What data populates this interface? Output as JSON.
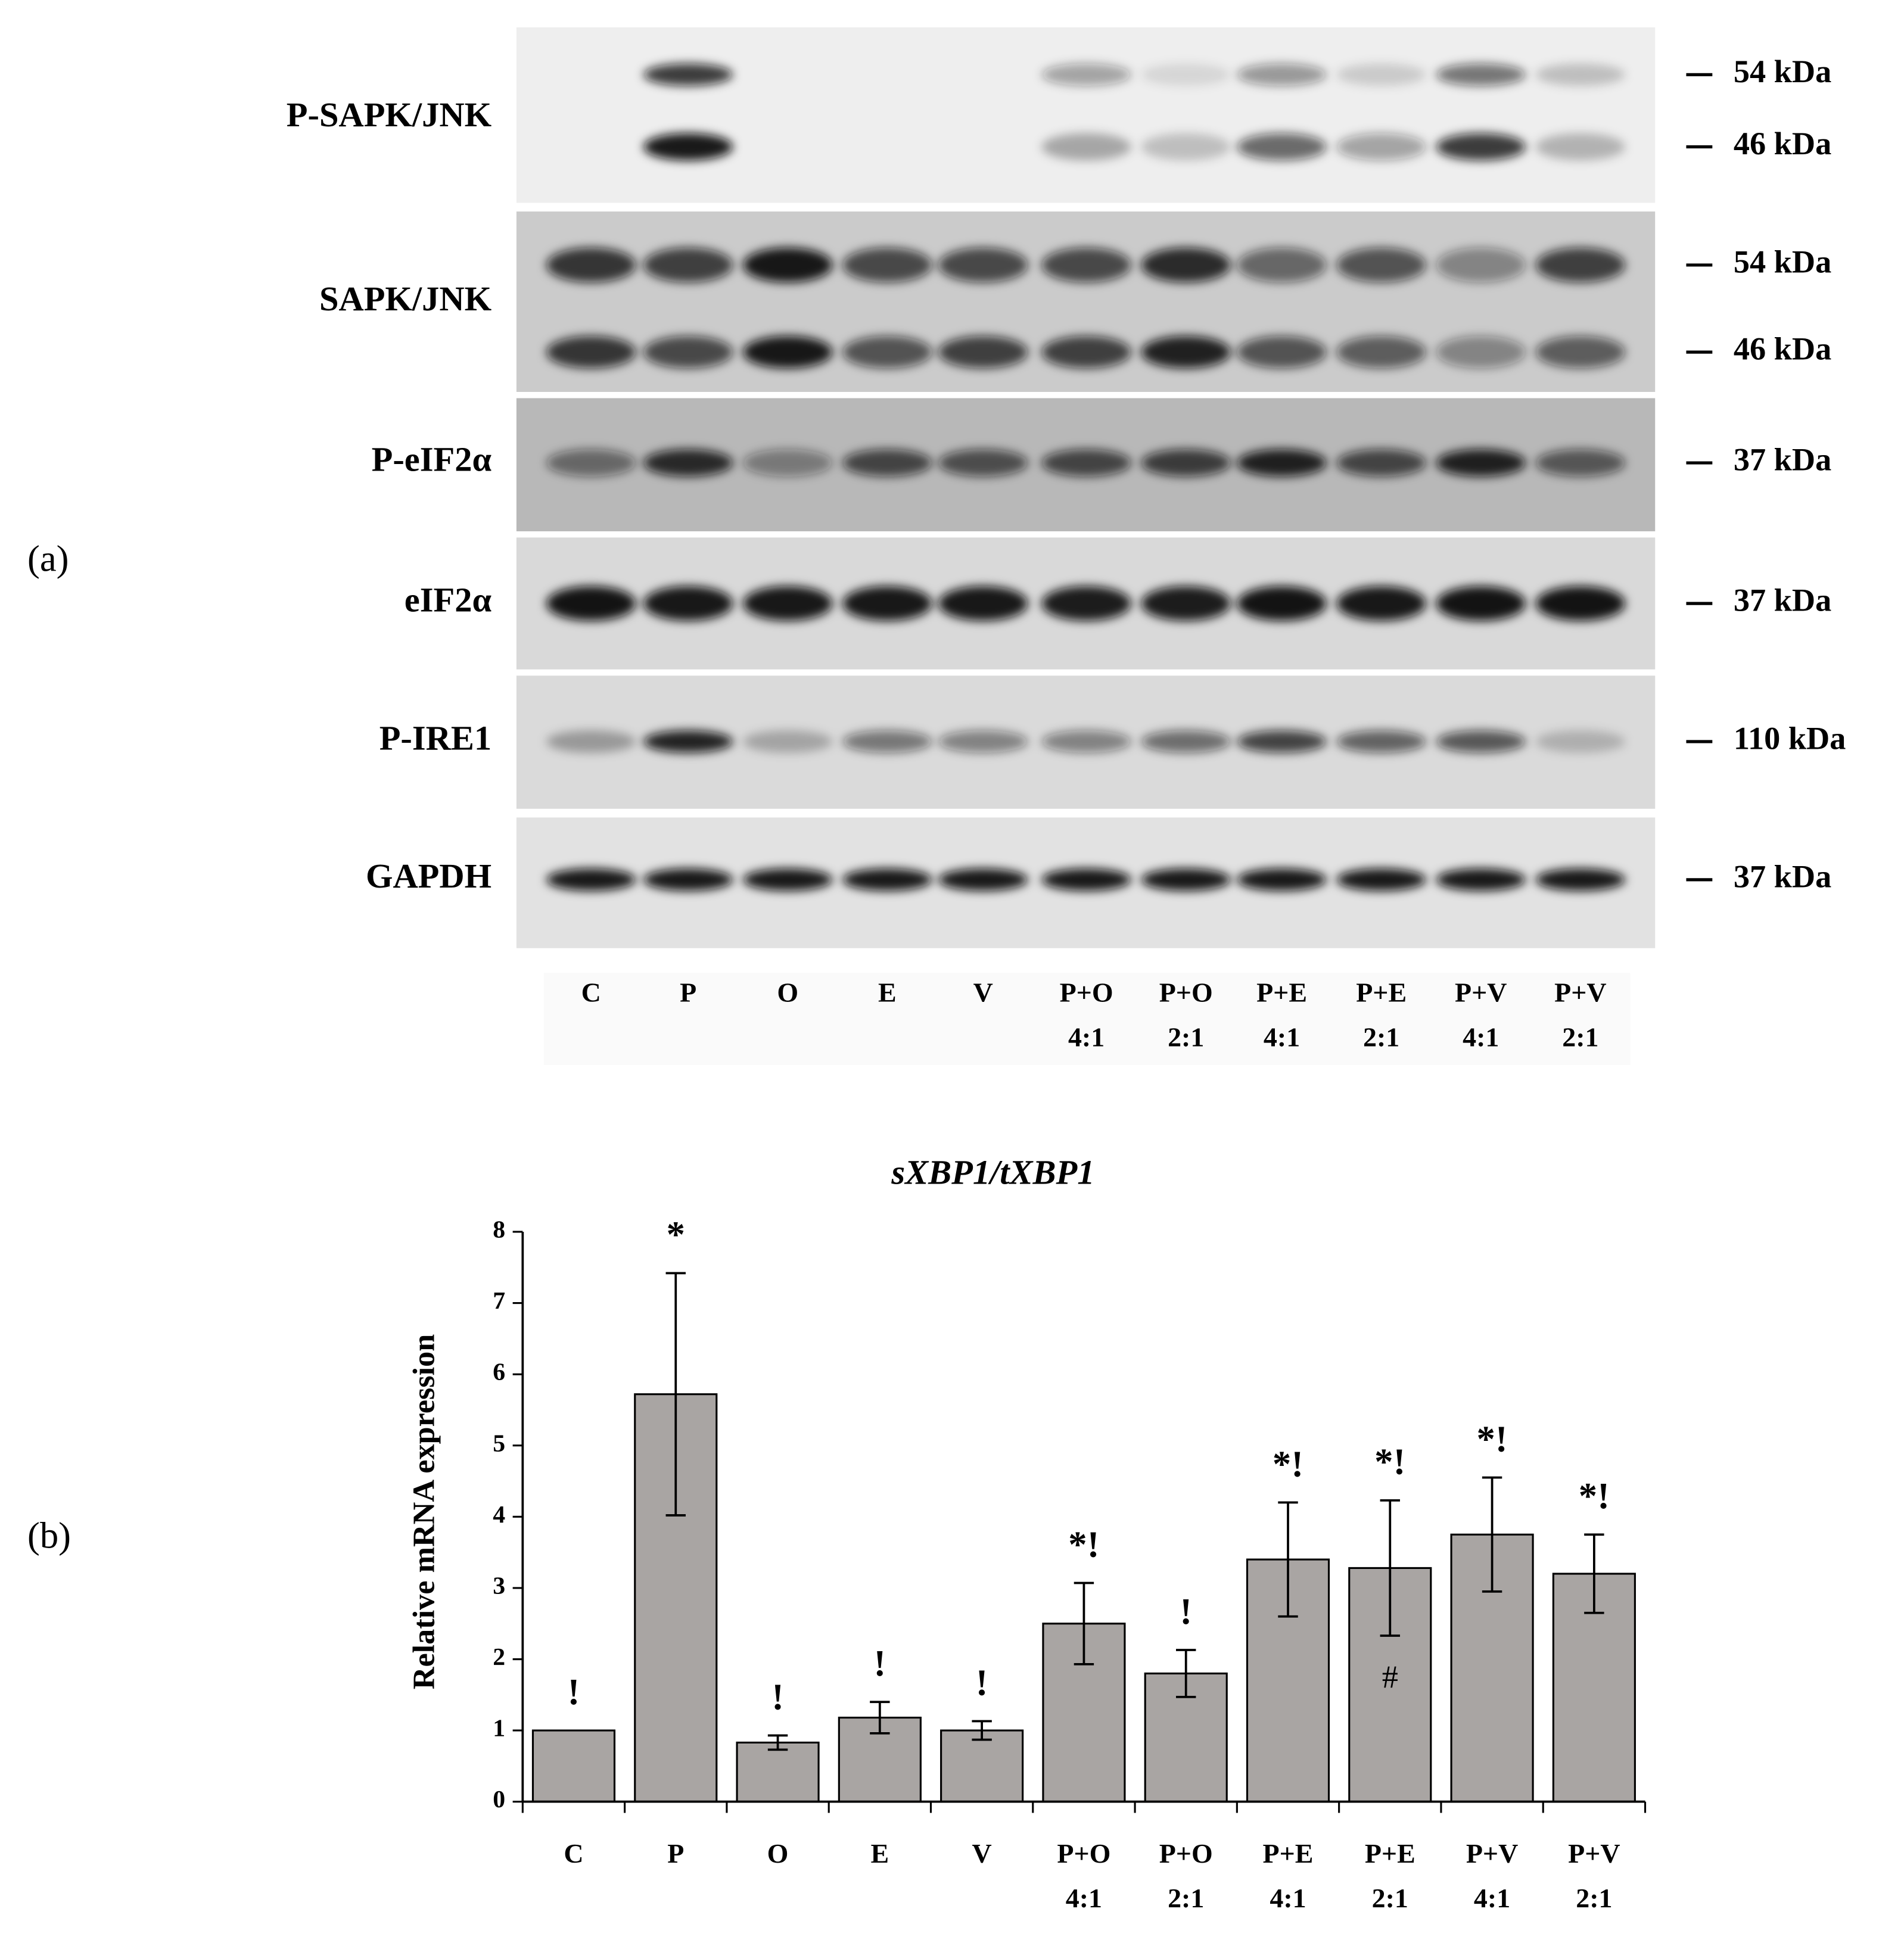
{
  "panel_labels": [
    "(a)",
    "(b)"
  ],
  "blot": {
    "rows": [
      {
        "label": "P-SAPK/JNK",
        "markers": [
          "54 kDa",
          "46 kDa"
        ]
      },
      {
        "label": "SAPK/JNK",
        "markers": [
          "54 kDa",
          "46 kDa"
        ]
      },
      {
        "label": "P-eIF2α",
        "markers": [
          "37 kDa"
        ]
      },
      {
        "label": "eIF2α",
        "markers": [
          "37 kDa"
        ]
      },
      {
        "label": "P-IRE1",
        "markers": [
          "110 kDa"
        ]
      },
      {
        "label": "GAPDH",
        "markers": [
          "37 kDa"
        ]
      }
    ],
    "lanes": [
      "C",
      "P",
      "O",
      "E",
      "V",
      "P+O\n4:1",
      "P+O\n2:1",
      "P+E\n4:1",
      "P+E\n2:1",
      "P+V\n4:1",
      "P+V\n2:1"
    ]
  },
  "chart_data": {
    "type": "bar",
    "title": "sXBP1/tXBP1",
    "y_label": "Relative mRNA expression",
    "categories": [
      "C",
      "P",
      "O",
      "E",
      "V",
      "P+O\n4:1",
      "P+O\n2:1",
      "P+E\n4:1",
      "P+E\n2:1",
      "P+V\n4:1",
      "P+V\n2:1"
    ],
    "values": [
      1.0,
      5.72,
      0.83,
      1.18,
      1.0,
      2.5,
      1.8,
      3.4,
      3.28,
      3.75,
      3.2
    ],
    "errors": [
      null,
      1.7,
      0.1,
      0.22,
      0.13,
      0.57,
      0.33,
      0.8,
      0.95,
      0.8,
      0.55
    ],
    "annotations": [
      "!",
      "*",
      "!",
      "!",
      "!",
      "*!",
      "!",
      "*!",
      "*!",
      "*!",
      "*!"
    ],
    "inner_annotations": [
      null,
      null,
      null,
      null,
      null,
      null,
      null,
      null,
      "#",
      null,
      null
    ],
    "color": "#a9a5a3",
    "edge_color": "#000000",
    "ylim": [
      0,
      8
    ],
    "yticks": [
      0,
      1,
      2,
      3,
      4,
      5,
      6,
      7,
      8
    ],
    "grid": false
  }
}
